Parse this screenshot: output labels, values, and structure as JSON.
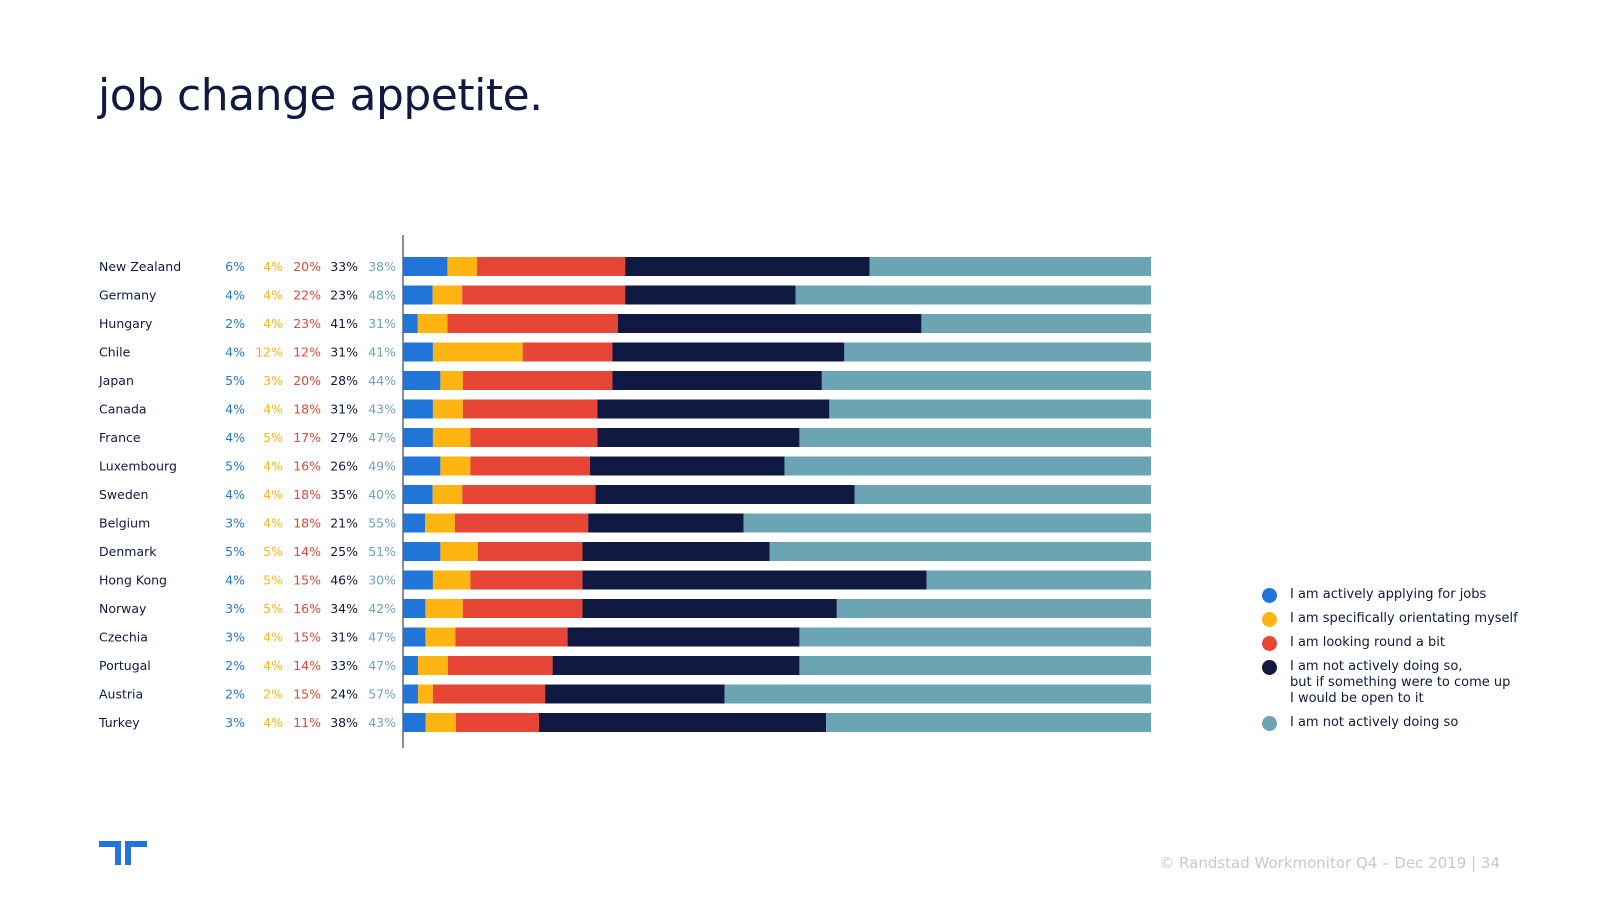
{
  "title": "job change appetite.",
  "footer": "© Randstad Workmonitor Q4 – Dec 2019  |  34",
  "logo_icon": "randstad-logo-icon",
  "colors": {
    "actively_applying": "#2175d9",
    "orientating": "#ffb511",
    "looking_round": "#e74536",
    "open_to_it": "#0f1941",
    "not_actively": "#6ba5b4",
    "title": "#0f1941"
  },
  "chart_data": {
    "type": "bar",
    "orientation": "horizontal",
    "stacked": true,
    "categories": [
      "New Zealand",
      "Germany",
      "Hungary",
      "Chile",
      "Japan",
      "Canada",
      "France",
      "Luxembourg",
      "Sweden",
      "Belgium",
      "Denmark",
      "Hong Kong",
      "Norway",
      "Czechia",
      "Portugal",
      "Austria",
      "Turkey"
    ],
    "series": [
      {
        "name": "I am actively applying for jobs",
        "color": "#2175d9",
        "values": [
          6,
          4,
          2,
          4,
          5,
          4,
          4,
          5,
          4,
          3,
          5,
          4,
          3,
          3,
          2,
          2,
          3
        ]
      },
      {
        "name": "I am specifically orientating myself",
        "color": "#ffb511",
        "values": [
          4,
          4,
          4,
          12,
          3,
          4,
          5,
          4,
          4,
          4,
          5,
          5,
          5,
          4,
          4,
          2,
          4
        ]
      },
      {
        "name": "I am looking round a bit",
        "color": "#e74536",
        "values": [
          20,
          22,
          23,
          12,
          20,
          18,
          17,
          16,
          18,
          18,
          14,
          15,
          16,
          15,
          14,
          15,
          11
        ]
      },
      {
        "name": "I am not actively doing so,\nbut if something were to come up\nI would be open to it",
        "color": "#0f1941",
        "values": [
          33,
          23,
          41,
          31,
          28,
          31,
          27,
          26,
          35,
          21,
          25,
          46,
          34,
          31,
          33,
          24,
          38
        ]
      },
      {
        "name": "I am not actively doing so",
        "color": "#6ba5b4",
        "values": [
          38,
          48,
          31,
          41,
          44,
          43,
          47,
          49,
          40,
          55,
          51,
          30,
          42,
          47,
          47,
          57,
          43
        ]
      }
    ],
    "value_suffix": "%",
    "legend_position": "right",
    "grid": false
  }
}
